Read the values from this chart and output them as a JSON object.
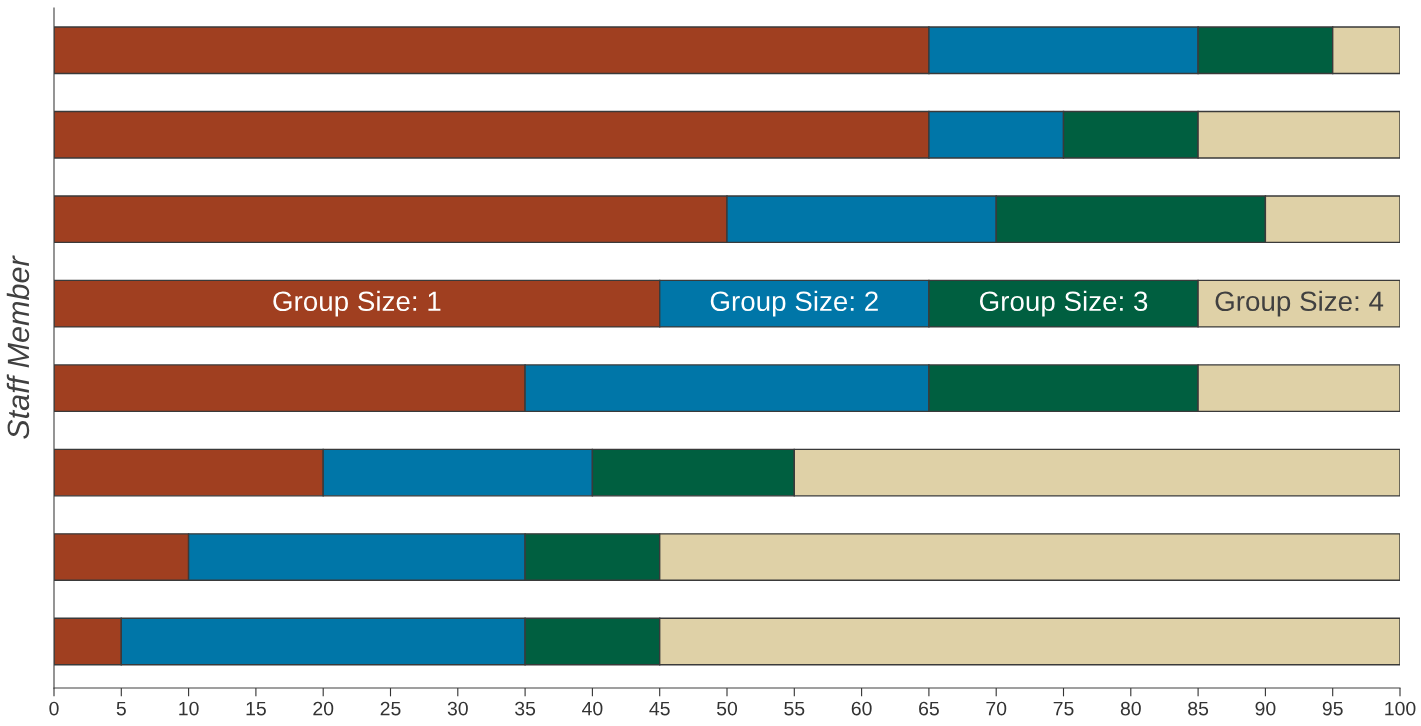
{
  "chart_data": {
    "type": "bar",
    "orientation": "horizontal",
    "stacked": true,
    "ylabel": "Staff Member",
    "categories": [
      null,
      null,
      null,
      null,
      null,
      null,
      null,
      null
    ],
    "series": [
      {
        "name": "Group Size: 1",
        "color": "#a03f20",
        "values": [
          65,
          65,
          50,
          45,
          35,
          20,
          10,
          5
        ]
      },
      {
        "name": "Group Size: 2",
        "color": "#0076a8",
        "values": [
          20,
          10,
          20,
          20,
          30,
          20,
          25,
          30
        ]
      },
      {
        "name": "Group Size: 3",
        "color": "#005f40",
        "values": [
          10,
          10,
          20,
          20,
          20,
          15,
          10,
          10
        ]
      },
      {
        "name": "Group Size: 4",
        "color": "#dfd1a7",
        "values": [
          5,
          15,
          10,
          15,
          15,
          45,
          55,
          55
        ]
      }
    ],
    "xlim": [
      0,
      100
    ],
    "xticks": [
      0,
      5,
      10,
      15,
      20,
      25,
      30,
      35,
      40,
      45,
      50,
      55,
      60,
      65,
      70,
      75,
      80,
      85,
      90,
      95,
      100
    ],
    "grid": false,
    "legend": false
  }
}
